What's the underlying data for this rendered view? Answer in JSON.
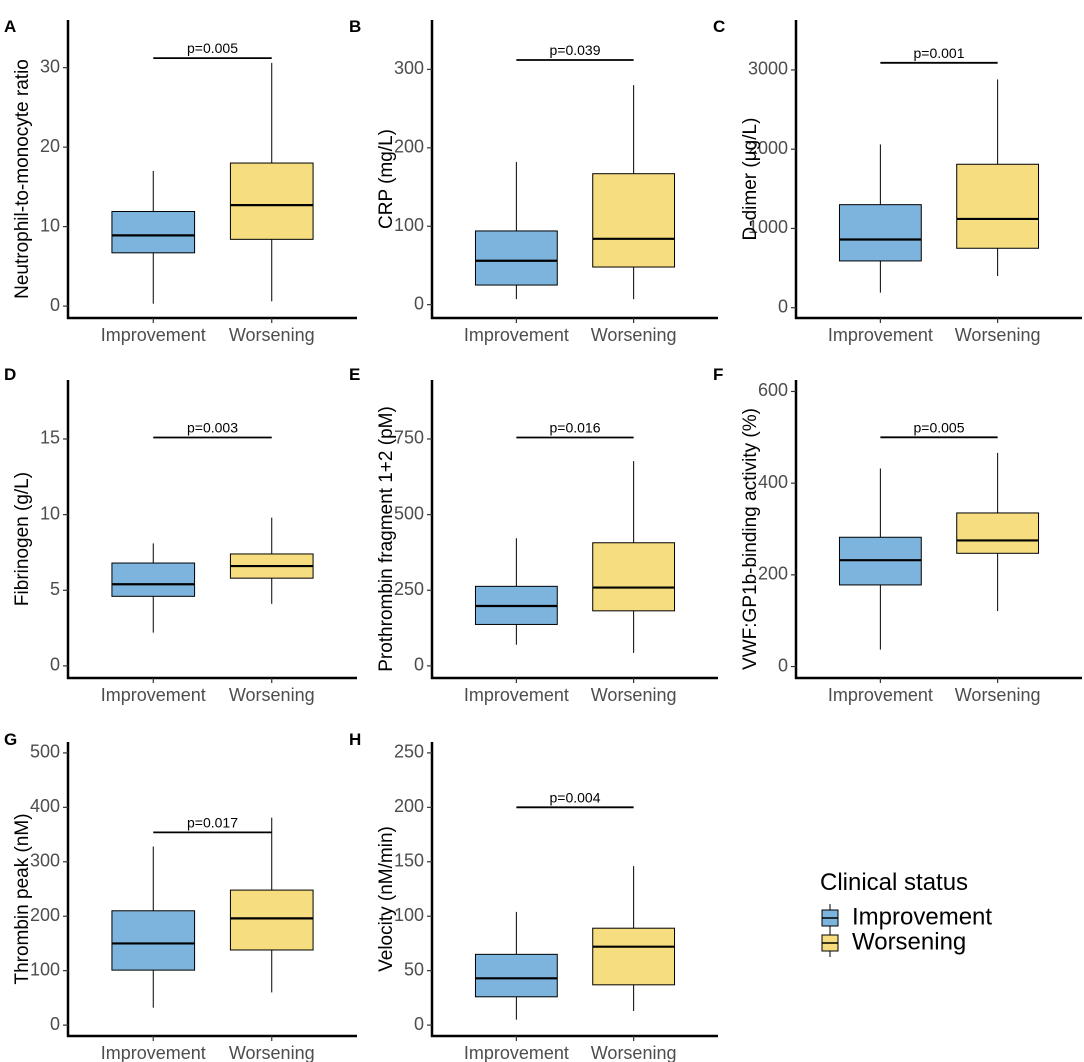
{
  "chart_data": [
    {
      "panel": "A",
      "type": "boxplot",
      "ylabel": "Neutrophil-to-monocyte ratio",
      "categories": [
        "Improvement",
        "Worsening"
      ],
      "ylim": [
        -1.5,
        36
      ],
      "yticks": [
        0,
        10,
        20,
        30
      ],
      "boxes": [
        {
          "category": "Improvement",
          "min": 0.3,
          "q1": 6.7,
          "median": 8.9,
          "q3": 11.9,
          "max": 17.0,
          "fill": "#7cb4de"
        },
        {
          "category": "Worsening",
          "min": 0.6,
          "q1": 8.4,
          "median": 12.7,
          "q3": 18.0,
          "max": 30.6,
          "fill": "#f5dd80"
        }
      ],
      "p_value": "p=0.005",
      "bracket_y": 31.2
    },
    {
      "panel": "B",
      "type": "boxplot",
      "ylabel": "CRP (mg/L)",
      "categories": [
        "Improvement",
        "Worsening"
      ],
      "ylim": [
        -17,
        363
      ],
      "yticks": [
        0,
        100,
        200,
        300
      ],
      "boxes": [
        {
          "category": "Improvement",
          "min": 7,
          "q1": 25,
          "median": 56,
          "q3": 94,
          "max": 182,
          "fill": "#7cb4de"
        },
        {
          "category": "Worsening",
          "min": 7,
          "q1": 48,
          "median": 84,
          "q3": 167,
          "max": 280,
          "fill": "#f5dd80"
        }
      ],
      "p_value": "p=0.039",
      "bracket_y": 312
    },
    {
      "panel": "C",
      "type": "boxplot",
      "ylabel": "D-dimer (µg/L)",
      "categories": [
        "Improvement",
        "Worsening"
      ],
      "ylim": [
        -130,
        3630
      ],
      "yticks": [
        0,
        1000,
        2000,
        3000
      ],
      "boxes": [
        {
          "category": "Improvement",
          "min": 190,
          "q1": 590,
          "median": 860,
          "q3": 1300,
          "max": 2060,
          "fill": "#7cb4de"
        },
        {
          "category": "Worsening",
          "min": 400,
          "q1": 750,
          "median": 1120,
          "q3": 1810,
          "max": 2880,
          "fill": "#f5dd80"
        }
      ],
      "p_value": "p=0.001",
      "bracket_y": 3090
    },
    {
      "panel": "D",
      "type": "boxplot",
      "ylabel": "Fibrinogen (g/L)",
      "categories": [
        "Improvement",
        "Worsening"
      ],
      "ylim": [
        -0.8,
        18.9
      ],
      "yticks": [
        0,
        5,
        10,
        15
      ],
      "boxes": [
        {
          "category": "Improvement",
          "min": 2.2,
          "q1": 4.6,
          "median": 5.4,
          "q3": 6.8,
          "max": 8.1,
          "fill": "#7cb4de"
        },
        {
          "category": "Worsening",
          "min": 4.1,
          "q1": 5.8,
          "median": 6.6,
          "q3": 7.4,
          "max": 9.8,
          "fill": "#f5dd80"
        }
      ],
      "p_value": "p=0.003",
      "bracket_y": 15.1
    },
    {
      "panel": "E",
      "type": "boxplot",
      "ylabel": "Prothrombin fragment 1+2 (pM)",
      "categories": [
        "Improvement",
        "Worsening"
      ],
      "ylim": [
        -40,
        945
      ],
      "yticks": [
        0,
        250,
        500,
        750
      ],
      "boxes": [
        {
          "category": "Improvement",
          "min": 70,
          "q1": 137,
          "median": 198,
          "q3": 263,
          "max": 422,
          "fill": "#7cb4de"
        },
        {
          "category": "Worsening",
          "min": 43,
          "q1": 182,
          "median": 259,
          "q3": 407,
          "max": 677,
          "fill": "#f5dd80"
        }
      ],
      "p_value": "p=0.016",
      "bracket_y": 755
    },
    {
      "panel": "F",
      "type": "boxplot",
      "ylabel": "VWF:GP1b-binding activity (%)",
      "categories": [
        "Improvement",
        "Worsening"
      ],
      "ylim": [
        -25,
        625
      ],
      "yticks": [
        0,
        200,
        400,
        600
      ],
      "boxes": [
        {
          "category": "Improvement",
          "min": 37,
          "q1": 178,
          "median": 232,
          "q3": 282,
          "max": 432,
          "fill": "#7cb4de"
        },
        {
          "category": "Worsening",
          "min": 121,
          "q1": 247,
          "median": 275,
          "q3": 335,
          "max": 466,
          "fill": "#f5dd80"
        }
      ],
      "p_value": "p=0.005",
      "bracket_y": 500
    },
    {
      "panel": "G",
      "type": "boxplot",
      "ylabel": "Thrombin peak (nM)",
      "categories": [
        "Improvement",
        "Worsening"
      ],
      "ylim": [
        -20,
        520
      ],
      "yticks": [
        0,
        100,
        200,
        300,
        400,
        500
      ],
      "boxes": [
        {
          "category": "Improvement",
          "min": 32,
          "q1": 101,
          "median": 150,
          "q3": 210,
          "max": 328,
          "fill": "#7cb4de"
        },
        {
          "category": "Worsening",
          "min": 60,
          "q1": 138,
          "median": 196,
          "q3": 248,
          "max": 381,
          "fill": "#f5dd80"
        }
      ],
      "p_value": "p=0.017",
      "bracket_y": 354
    },
    {
      "panel": "H",
      "type": "boxplot",
      "ylabel": "Velocity (nM/min)",
      "categories": [
        "Improvement",
        "Worsening"
      ],
      "ylim": [
        -10,
        260
      ],
      "yticks": [
        0,
        50,
        100,
        150,
        200,
        250
      ],
      "boxes": [
        {
          "category": "Improvement",
          "min": 5,
          "q1": 26,
          "median": 43,
          "q3": 65,
          "max": 104,
          "fill": "#7cb4de"
        },
        {
          "category": "Worsening",
          "min": 13,
          "q1": 37,
          "median": 72,
          "q3": 89,
          "max": 146,
          "fill": "#f5dd80"
        }
      ],
      "p_value": "p=0.004",
      "bracket_y": 200
    }
  ],
  "legend": {
    "title": "Clinical status",
    "items": [
      {
        "label": "Improvement",
        "color": "#7cb4de"
      },
      {
        "label": "Worsening",
        "color": "#f5dd80"
      }
    ]
  }
}
